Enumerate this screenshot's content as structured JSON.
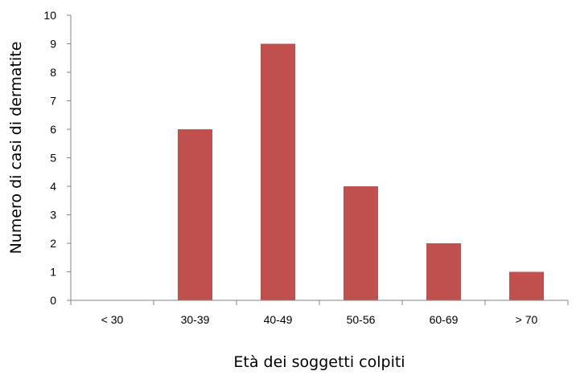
{
  "chart_data": {
    "type": "bar",
    "title": "",
    "xlabel": "Età dei soggetti colpiti",
    "ylabel": "Numero di  casi di dermatite",
    "categories": [
      "< 30",
      "30-39",
      "40-49",
      "50-56",
      "60-69",
      "> 70"
    ],
    "values": [
      0,
      6,
      9,
      4,
      2,
      1
    ],
    "ylim": [
      0,
      10
    ],
    "yticks": [
      "0",
      "1",
      "2",
      "3",
      "4",
      "5",
      "6",
      "7",
      "8",
      "9",
      "10"
    ],
    "grid": false,
    "legend": "none",
    "bar_color": "#c0504d"
  }
}
